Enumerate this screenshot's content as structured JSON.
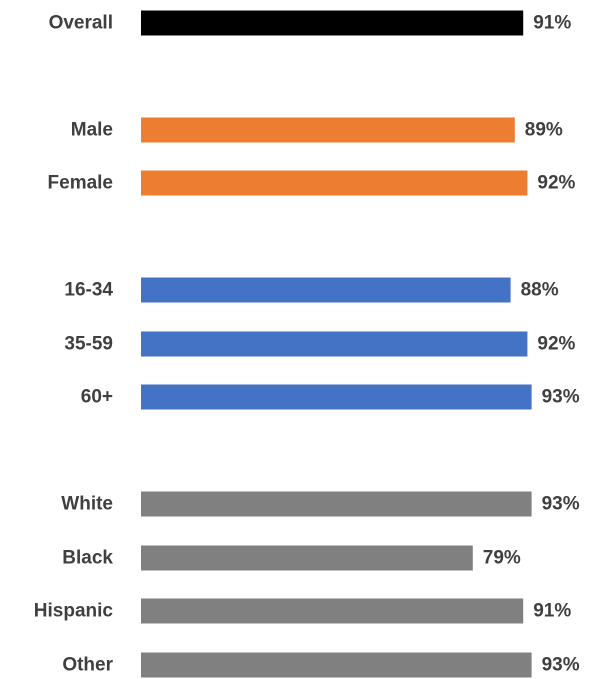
{
  "chart_data": {
    "type": "bar",
    "orientation": "horizontal",
    "title": "",
    "xlabel": "",
    "ylabel": "",
    "grid": false,
    "legend": "none",
    "xlim": [
      0,
      100
    ],
    "categories": [
      "Overall",
      "Male",
      "Female",
      "16-34",
      "35-59",
      "60+",
      "White",
      "Black",
      "Hispanic",
      "Other"
    ],
    "values": [
      91,
      89,
      92,
      88,
      92,
      93,
      93,
      79,
      91,
      93
    ],
    "value_labels": [
      "91%",
      "89%",
      "92%",
      "88%",
      "92%",
      "93%",
      "93%",
      "79%",
      "91%",
      "93%"
    ],
    "groups": [
      {
        "color": "#000000",
        "categories": [
          "Overall"
        ]
      },
      {
        "color": "#ED7D31",
        "categories": [
          "Male",
          "Female"
        ]
      },
      {
        "color": "#4472C4",
        "categories": [
          "16-34",
          "35-59",
          "60+"
        ]
      },
      {
        "color": "#808080",
        "categories": [
          "White",
          "Black",
          "Hispanic",
          "Other"
        ]
      }
    ],
    "colors": {
      "category_text": "#3f3f3f",
      "value_text": "#3f3f3f",
      "value_text_emphasis": "#000000"
    },
    "emphasized_value_labels": [
      "91%",
      "91%"
    ]
  }
}
